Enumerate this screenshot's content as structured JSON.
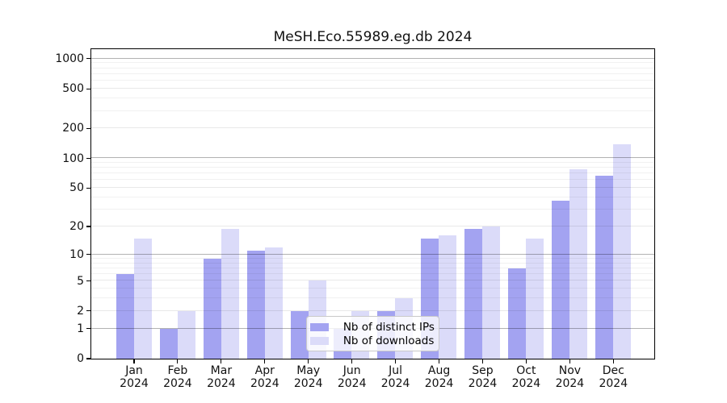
{
  "chart_data": {
    "type": "bar",
    "title": "MeSH.Eco.55989.eg.db 2024",
    "categories": [
      "Jan 2024",
      "Feb 2024",
      "Mar 2024",
      "Apr 2024",
      "May 2024",
      "Jun 2024",
      "Jul 2024",
      "Aug 2024",
      "Sep 2024",
      "Oct 2024",
      "Nov 2024",
      "Dec 2024"
    ],
    "series": [
      {
        "name": "Nb of distinct IPs",
        "color": "#a3a3f1",
        "values": [
          6,
          1,
          9,
          11,
          2,
          1,
          2,
          15,
          19,
          7,
          37,
          67
        ]
      },
      {
        "name": "Nb of downloads",
        "color": "#dbdbf9",
        "values": [
          15,
          2,
          19,
          12,
          5,
          2,
          3,
          16,
          20,
          15,
          78,
          138
        ]
      }
    ],
    "yscale": "log1p",
    "ylim": [
      0,
      1250
    ],
    "yticks": [
      0,
      1,
      2,
      5,
      10,
      20,
      50,
      100,
      200,
      500,
      1000
    ],
    "yticks_minor": [
      3,
      4,
      6,
      7,
      8,
      9,
      30,
      40,
      60,
      70,
      80,
      90,
      300,
      400,
      600,
      700,
      800,
      900
    ],
    "grid": true,
    "legend_position": "lower center",
    "xlabel": "",
    "ylabel": ""
  },
  "colors": {
    "spine": "#000000",
    "decade_grid": "#adadad",
    "light_grid": "#e9e9e9",
    "background": "#ffffff"
  }
}
